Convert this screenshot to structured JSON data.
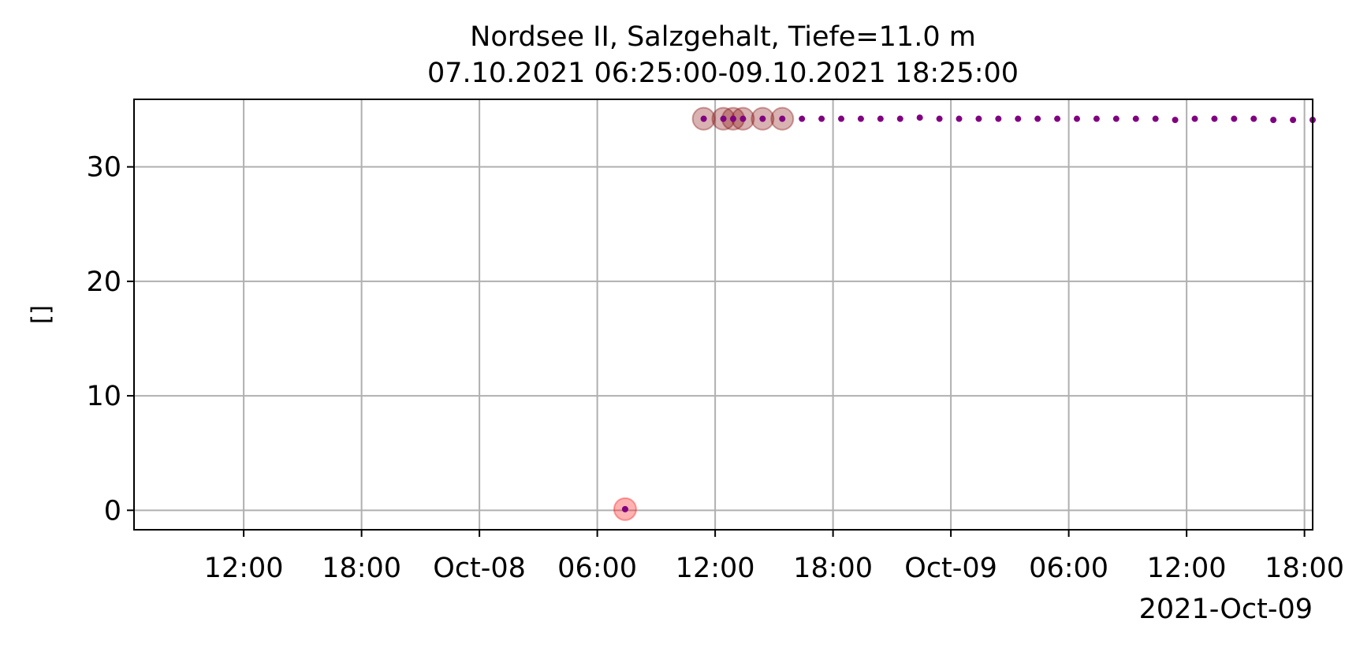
{
  "chart_data": {
    "type": "scatter",
    "title": [
      "Nordsee II, Salzgehalt, Tiefe=11.0 m",
      "07.10.2021 06:25:00-09.10.2021 18:25:00"
    ],
    "xlabel": "",
    "ylabel": "[]",
    "x_axis_kind": "datetime",
    "x_range": [
      "2021-10-07T06:25:00",
      "2021-10-09T18:25:00"
    ],
    "x_ticks": [
      {
        "t": "2021-10-07T12:00:00",
        "label": "12:00"
      },
      {
        "t": "2021-10-07T18:00:00",
        "label": "18:00"
      },
      {
        "t": "2021-10-08T00:00:00",
        "label": "Oct-08"
      },
      {
        "t": "2021-10-08T06:00:00",
        "label": "06:00"
      },
      {
        "t": "2021-10-08T12:00:00",
        "label": "12:00"
      },
      {
        "t": "2021-10-08T18:00:00",
        "label": "18:00"
      },
      {
        "t": "2021-10-09T00:00:00",
        "label": "Oct-09"
      },
      {
        "t": "2021-10-09T06:00:00",
        "label": "06:00"
      },
      {
        "t": "2021-10-09T12:00:00",
        "label": "12:00"
      },
      {
        "t": "2021-10-09T18:00:00",
        "label": "18:00"
      }
    ],
    "x_offset_label": "2021-Oct-09",
    "ylim": [
      -1.7,
      35.9
    ],
    "y_ticks": [
      0,
      10,
      20,
      30
    ],
    "grid": true,
    "marker_color": "#800080",
    "flag_colors": {
      "bad": "#ff0000",
      "suspect": "#800000"
    },
    "series": [
      {
        "points": [
          {
            "t": "2021-10-08T07:25:00",
            "y": 0.1,
            "flag": "bad"
          },
          {
            "t": "2021-10-08T11:25:00",
            "y": 34.2,
            "flag": "suspect"
          },
          {
            "t": "2021-10-08T12:25:00",
            "y": 34.2,
            "flag": "suspect"
          },
          {
            "t": "2021-10-08T12:55:00",
            "y": 34.2,
            "flag": "suspect"
          },
          {
            "t": "2021-10-08T13:25:00",
            "y": 34.2,
            "flag": "suspect"
          },
          {
            "t": "2021-10-08T14:25:00",
            "y": 34.2,
            "flag": "suspect"
          },
          {
            "t": "2021-10-08T15:25:00",
            "y": 34.2,
            "flag": "suspect"
          },
          {
            "t": "2021-10-08T16:25:00",
            "y": 34.2
          },
          {
            "t": "2021-10-08T17:25:00",
            "y": 34.2
          },
          {
            "t": "2021-10-08T18:25:00",
            "y": 34.2
          },
          {
            "t": "2021-10-08T19:25:00",
            "y": 34.2
          },
          {
            "t": "2021-10-08T20:25:00",
            "y": 34.2
          },
          {
            "t": "2021-10-08T21:25:00",
            "y": 34.2
          },
          {
            "t": "2021-10-08T22:25:00",
            "y": 34.3
          },
          {
            "t": "2021-10-08T23:25:00",
            "y": 34.2
          },
          {
            "t": "2021-10-09T00:25:00",
            "y": 34.2
          },
          {
            "t": "2021-10-09T01:25:00",
            "y": 34.2
          },
          {
            "t": "2021-10-09T02:25:00",
            "y": 34.2
          },
          {
            "t": "2021-10-09T03:25:00",
            "y": 34.2
          },
          {
            "t": "2021-10-09T04:25:00",
            "y": 34.2
          },
          {
            "t": "2021-10-09T05:25:00",
            "y": 34.2
          },
          {
            "t": "2021-10-09T06:25:00",
            "y": 34.2
          },
          {
            "t": "2021-10-09T07:25:00",
            "y": 34.2
          },
          {
            "t": "2021-10-09T08:25:00",
            "y": 34.2
          },
          {
            "t": "2021-10-09T09:25:00",
            "y": 34.2
          },
          {
            "t": "2021-10-09T10:25:00",
            "y": 34.2
          },
          {
            "t": "2021-10-09T11:25:00",
            "y": 34.1
          },
          {
            "t": "2021-10-09T12:25:00",
            "y": 34.2
          },
          {
            "t": "2021-10-09T13:25:00",
            "y": 34.2
          },
          {
            "t": "2021-10-09T14:25:00",
            "y": 34.2
          },
          {
            "t": "2021-10-09T15:25:00",
            "y": 34.2
          },
          {
            "t": "2021-10-09T16:25:00",
            "y": 34.1
          },
          {
            "t": "2021-10-09T17:25:00",
            "y": 34.1
          },
          {
            "t": "2021-10-09T18:25:00",
            "y": 34.1
          }
        ]
      }
    ]
  }
}
